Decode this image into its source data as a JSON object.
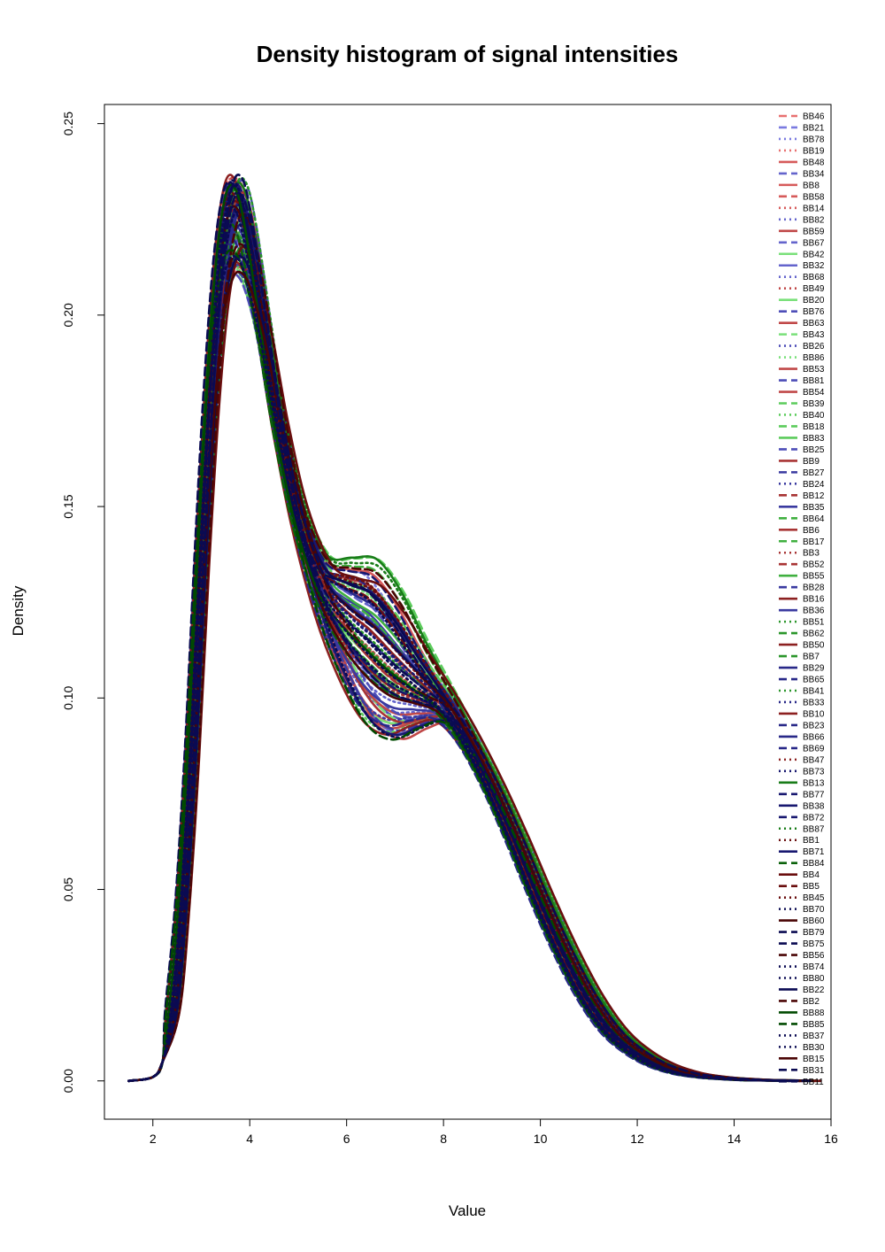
{
  "chart_data": {
    "type": "line",
    "title": "Density histogram of signal intensities",
    "xlabel": "Value",
    "ylabel": "Density",
    "xlim": [
      1.0,
      16.0
    ],
    "ylim": [
      -0.01,
      0.255
    ],
    "x_ticks": [
      2,
      4,
      6,
      8,
      10,
      12,
      14,
      16
    ],
    "y_ticks": [
      0.0,
      0.05,
      0.1,
      0.15,
      0.2,
      0.25
    ],
    "y_tick_labels": [
      "0.00",
      "0.05",
      "0.10",
      "0.15",
      "0.20",
      "0.25"
    ],
    "grid": false,
    "legend_position": "top-right",
    "palette": {
      "red": [
        "#e87070",
        "#d65a5a",
        "#c04848",
        "#a83434",
        "#8c2020",
        "#6a0e0e",
        "#4a0505"
      ],
      "blue": [
        "#7a7ae0",
        "#6464cc",
        "#4e4eb8",
        "#3a3aa0",
        "#282888",
        "#181870",
        "#0a0a52"
      ],
      "green": [
        "#7ae07a",
        "#5ccc5c",
        "#40b040",
        "#2a962a",
        "#187c18",
        "#0a620a",
        "#004a00"
      ]
    },
    "representative_curve": {
      "x": [
        1.5,
        2.0,
        2.2,
        2.4,
        2.6,
        2.8,
        3.0,
        3.2,
        3.4,
        3.6,
        3.8,
        4.0,
        4.3,
        4.6,
        5.0,
        5.5,
        6.0,
        6.5,
        7.0,
        7.5,
        8.0,
        8.5,
        9.0,
        9.5,
        10.0,
        10.5,
        11.0,
        11.5,
        12.0,
        12.5,
        13.0,
        13.5,
        14.0,
        14.5,
        15.0,
        15.4
      ],
      "y": [
        0.0,
        0.001,
        0.005,
        0.018,
        0.045,
        0.085,
        0.135,
        0.178,
        0.208,
        0.222,
        0.223,
        0.215,
        0.195,
        0.172,
        0.148,
        0.129,
        0.12,
        0.114,
        0.108,
        0.103,
        0.098,
        0.089,
        0.077,
        0.063,
        0.048,
        0.034,
        0.022,
        0.013,
        0.0075,
        0.004,
        0.002,
        0.001,
        0.0005,
        0.0002,
        0.0001,
        0.0
      ]
    },
    "series": [
      {
        "name": "BB46",
        "color": "red",
        "shade": 0,
        "dash": "dash"
      },
      {
        "name": "BB21",
        "color": "blue",
        "shade": 0,
        "dash": "dash"
      },
      {
        "name": "BB78",
        "color": "blue",
        "shade": 0,
        "dash": "dot"
      },
      {
        "name": "BB19",
        "color": "red",
        "shade": 0,
        "dash": "dot"
      },
      {
        "name": "BB48",
        "color": "red",
        "shade": 1,
        "dash": "solid"
      },
      {
        "name": "BB34",
        "color": "blue",
        "shade": 1,
        "dash": "dash"
      },
      {
        "name": "BB8",
        "color": "red",
        "shade": 1,
        "dash": "solid"
      },
      {
        "name": "BB58",
        "color": "red",
        "shade": 1,
        "dash": "dash"
      },
      {
        "name": "BB14",
        "color": "red",
        "shade": 1,
        "dash": "dot"
      },
      {
        "name": "BB82",
        "color": "blue",
        "shade": 1,
        "dash": "dot"
      },
      {
        "name": "BB59",
        "color": "red",
        "shade": 2,
        "dash": "solid"
      },
      {
        "name": "BB67",
        "color": "blue",
        "shade": 1,
        "dash": "dash"
      },
      {
        "name": "BB42",
        "color": "green",
        "shade": 0,
        "dash": "solid"
      },
      {
        "name": "BB32",
        "color": "blue",
        "shade": 1,
        "dash": "solid"
      },
      {
        "name": "BB68",
        "color": "blue",
        "shade": 1,
        "dash": "dot"
      },
      {
        "name": "BB49",
        "color": "red",
        "shade": 2,
        "dash": "dot"
      },
      {
        "name": "BB20",
        "color": "green",
        "shade": 0,
        "dash": "solid"
      },
      {
        "name": "BB76",
        "color": "blue",
        "shade": 2,
        "dash": "dash"
      },
      {
        "name": "BB63",
        "color": "red",
        "shade": 2,
        "dash": "solid"
      },
      {
        "name": "BB43",
        "color": "green",
        "shade": 0,
        "dash": "dash"
      },
      {
        "name": "BB26",
        "color": "blue",
        "shade": 2,
        "dash": "dot"
      },
      {
        "name": "BB86",
        "color": "green",
        "shade": 0,
        "dash": "dot"
      },
      {
        "name": "BB53",
        "color": "red",
        "shade": 2,
        "dash": "solid"
      },
      {
        "name": "BB81",
        "color": "blue",
        "shade": 2,
        "dash": "dash"
      },
      {
        "name": "BB54",
        "color": "red",
        "shade": 2,
        "dash": "solid"
      },
      {
        "name": "BB39",
        "color": "green",
        "shade": 1,
        "dash": "dash"
      },
      {
        "name": "BB40",
        "color": "green",
        "shade": 1,
        "dash": "dot"
      },
      {
        "name": "BB18",
        "color": "green",
        "shade": 1,
        "dash": "dash"
      },
      {
        "name": "BB83",
        "color": "green",
        "shade": 1,
        "dash": "solid"
      },
      {
        "name": "BB25",
        "color": "blue",
        "shade": 2,
        "dash": "dash"
      },
      {
        "name": "BB9",
        "color": "red",
        "shade": 3,
        "dash": "solid"
      },
      {
        "name": "BB27",
        "color": "blue",
        "shade": 3,
        "dash": "dash"
      },
      {
        "name": "BB24",
        "color": "blue",
        "shade": 3,
        "dash": "dot"
      },
      {
        "name": "BB12",
        "color": "red",
        "shade": 3,
        "dash": "dash"
      },
      {
        "name": "BB35",
        "color": "blue",
        "shade": 3,
        "dash": "solid"
      },
      {
        "name": "BB64",
        "color": "green",
        "shade": 2,
        "dash": "dash"
      },
      {
        "name": "BB6",
        "color": "red",
        "shade": 3,
        "dash": "solid"
      },
      {
        "name": "BB17",
        "color": "green",
        "shade": 2,
        "dash": "dash"
      },
      {
        "name": "BB3",
        "color": "red",
        "shade": 3,
        "dash": "dot"
      },
      {
        "name": "BB52",
        "color": "red",
        "shade": 3,
        "dash": "dash"
      },
      {
        "name": "BB55",
        "color": "green",
        "shade": 2,
        "dash": "solid"
      },
      {
        "name": "BB28",
        "color": "blue",
        "shade": 3,
        "dash": "dash"
      },
      {
        "name": "BB16",
        "color": "red",
        "shade": 4,
        "dash": "solid"
      },
      {
        "name": "BB36",
        "color": "blue",
        "shade": 3,
        "dash": "solid"
      },
      {
        "name": "BB51",
        "color": "green",
        "shade": 3,
        "dash": "dot"
      },
      {
        "name": "BB62",
        "color": "green",
        "shade": 3,
        "dash": "dash"
      },
      {
        "name": "BB50",
        "color": "red",
        "shade": 4,
        "dash": "solid"
      },
      {
        "name": "BB7",
        "color": "green",
        "shade": 3,
        "dash": "dash"
      },
      {
        "name": "BB29",
        "color": "blue",
        "shade": 4,
        "dash": "solid"
      },
      {
        "name": "BB65",
        "color": "blue",
        "shade": 4,
        "dash": "dash"
      },
      {
        "name": "BB41",
        "color": "green",
        "shade": 3,
        "dash": "dot"
      },
      {
        "name": "BB33",
        "color": "blue",
        "shade": 4,
        "dash": "dot"
      },
      {
        "name": "BB10",
        "color": "red",
        "shade": 4,
        "dash": "solid"
      },
      {
        "name": "BB23",
        "color": "blue",
        "shade": 4,
        "dash": "dash"
      },
      {
        "name": "BB66",
        "color": "blue",
        "shade": 4,
        "dash": "solid"
      },
      {
        "name": "BB69",
        "color": "blue",
        "shade": 4,
        "dash": "dash"
      },
      {
        "name": "BB47",
        "color": "red",
        "shade": 4,
        "dash": "dot"
      },
      {
        "name": "BB73",
        "color": "blue",
        "shade": 5,
        "dash": "dot"
      },
      {
        "name": "BB13",
        "color": "green",
        "shade": 4,
        "dash": "solid"
      },
      {
        "name": "BB77",
        "color": "blue",
        "shade": 5,
        "dash": "dash"
      },
      {
        "name": "BB38",
        "color": "blue",
        "shade": 5,
        "dash": "solid"
      },
      {
        "name": "BB72",
        "color": "blue",
        "shade": 5,
        "dash": "dash"
      },
      {
        "name": "BB87",
        "color": "green",
        "shade": 4,
        "dash": "dot"
      },
      {
        "name": "BB1",
        "color": "red",
        "shade": 5,
        "dash": "dot"
      },
      {
        "name": "BB71",
        "color": "blue",
        "shade": 5,
        "dash": "solid"
      },
      {
        "name": "BB84",
        "color": "green",
        "shade": 5,
        "dash": "dash"
      },
      {
        "name": "BB4",
        "color": "red",
        "shade": 5,
        "dash": "solid"
      },
      {
        "name": "BB5",
        "color": "red",
        "shade": 5,
        "dash": "dash"
      },
      {
        "name": "BB45",
        "color": "red",
        "shade": 5,
        "dash": "dot"
      },
      {
        "name": "BB70",
        "color": "blue",
        "shade": 6,
        "dash": "dot"
      },
      {
        "name": "BB60",
        "color": "red",
        "shade": 6,
        "dash": "solid"
      },
      {
        "name": "BB79",
        "color": "blue",
        "shade": 6,
        "dash": "dash"
      },
      {
        "name": "BB75",
        "color": "blue",
        "shade": 6,
        "dash": "dash"
      },
      {
        "name": "BB56",
        "color": "red",
        "shade": 6,
        "dash": "dash"
      },
      {
        "name": "BB74",
        "color": "blue",
        "shade": 6,
        "dash": "dot"
      },
      {
        "name": "BB80",
        "color": "blue",
        "shade": 6,
        "dash": "dot"
      },
      {
        "name": "BB22",
        "color": "blue",
        "shade": 6,
        "dash": "solid"
      },
      {
        "name": "BB2",
        "color": "red",
        "shade": 6,
        "dash": "dash"
      },
      {
        "name": "BB88",
        "color": "green",
        "shade": 6,
        "dash": "solid"
      },
      {
        "name": "BB85",
        "color": "green",
        "shade": 6,
        "dash": "dash"
      },
      {
        "name": "BB37",
        "color": "blue",
        "shade": 6,
        "dash": "dot"
      },
      {
        "name": "BB30",
        "color": "blue",
        "shade": 6,
        "dash": "dot"
      },
      {
        "name": "BB15",
        "color": "red",
        "shade": 6,
        "dash": "solid"
      },
      {
        "name": "BB31",
        "color": "blue",
        "shade": 6,
        "dash": "dash"
      },
      {
        "name": "BB11",
        "color": "blue",
        "shade": 6,
        "dash": "dash"
      }
    ]
  }
}
